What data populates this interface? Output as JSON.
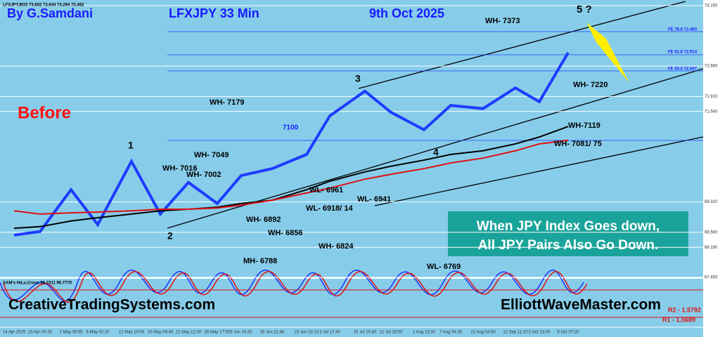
{
  "chart_data": {
    "type": "line",
    "categories": [
      "14 Apr 2025",
      "23 Apr 00:35",
      "1 May 06:55",
      "6 May 02:20",
      "12 May 10:00",
      "15 May 09:45",
      "21 May 12:00",
      "30 May 17:55",
      "6 Jun 16:30",
      "16 Jun 21:45",
      "23 Jun 13:10",
      "3 Jul 17:40",
      "15 Jul 15:40",
      "21 Jul 16:50",
      "1 Aug 15:30",
      "7 Aug 04:35",
      "22 Aug 04:50",
      "12 Sep 11:10",
      "2 Oct 13:05",
      "6 Oct 07:20"
    ],
    "series": [
      {
        "color": "#1e3cff",
        "values": [
          68.49,
          68.58,
          69.61,
          68.75,
          70.31,
          69.01,
          69.79,
          69.27,
          69.96,
          70.13,
          70.48,
          71.43,
          72.04,
          71.52,
          71.09,
          71.69,
          71.61,
          72.12,
          71.78,
          72.99
        ]
      },
      {
        "color": "#000000",
        "values": [
          68.66,
          68.7,
          68.84,
          68.92,
          69.01,
          69.09,
          69.13,
          69.18,
          69.27,
          69.35,
          69.61,
          69.82,
          70.05,
          70.19,
          70.34,
          70.48,
          70.57,
          70.74,
          70.91,
          71.17
        ]
      },
      {
        "color": "#e01010",
        "values": [
          69.09,
          69.01,
          69.04,
          69.06,
          69.09,
          69.13,
          69.13,
          69.16,
          69.23,
          69.35,
          69.53,
          69.65,
          69.87,
          69.99,
          70.13,
          70.27,
          70.39,
          70.57,
          70.74,
          70.83
        ]
      }
    ],
    "ylim": [
      67.45,
      74.15
    ],
    "yticks": [
      {
        "value": 74.15,
        "label": "74.150"
      },
      {
        "value": 72.66,
        "label": "72.660"
      },
      {
        "value": 71.91,
        "label": "71.910"
      },
      {
        "value": 71.54,
        "label": "71.540"
      },
      {
        "value": 69.31,
        "label": "69.310"
      },
      {
        "value": 68.56,
        "label": "68.560"
      },
      {
        "value": 68.19,
        "label": "68.190"
      },
      {
        "value": 67.45,
        "label": "67.450"
      }
    ],
    "grid": true,
    "annotations": [
      "By G.Samdani",
      "LFXJPY 33 Min",
      "9th Oct 2025",
      "5 ?",
      "WH- 7373",
      "WH- 7220",
      "WH- 7179",
      "Before",
      "WH-7119",
      "WH- 7081/ 75",
      "7100",
      "3",
      "1",
      "WH- 7049",
      "WH- 7016",
      "WH- 7002",
      "4",
      "WL- 6961",
      "WL- 6941",
      "WL- 6918/ 14",
      "WH- 6892",
      "2",
      "WH- 6856",
      "WH- 6824",
      "MH- 6788",
      "WL- 6769",
      "CreativeTradingSystems.com",
      "ElliottWaveMaster.com",
      "LFXJPY,M33 73.602 73.644 73.294 73.462",
      "SAM's HiLo,Cross 95.2311 96.7770",
      "FE 78.6 73.493",
      "FE 61.8 72.914",
      "FE 50.0 72.507",
      "R2 - 1.5792",
      "R1 - 1.5689"
    ],
    "box": [
      "When JPY Index Goes down,",
      "All JPY Pairs Also Go Down."
    ]
  }
}
